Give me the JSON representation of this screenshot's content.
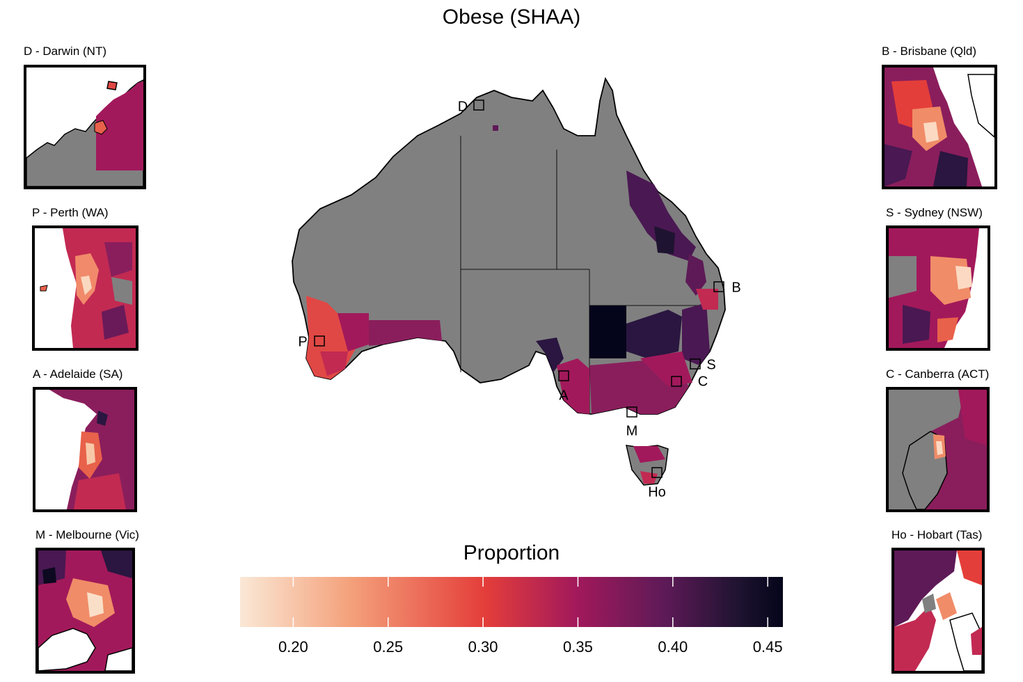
{
  "title": "Obese (SHAA)",
  "insets": [
    {
      "label": "D - Darwin (NT)"
    },
    {
      "label": "P - Perth (WA)"
    },
    {
      "label": "A - Adelaide (SA)"
    },
    {
      "label": "M - Melbourne (Vic)"
    },
    {
      "label": "B - Brisbane (Qld)"
    },
    {
      "label": "S - Sydney (NSW)"
    },
    {
      "label": "C - Canberra (ACT)"
    },
    {
      "label": "Ho - Hobart (Tas)"
    }
  ],
  "map_markers": [
    "D",
    "P",
    "A",
    "M",
    "B",
    "S",
    "C",
    "Ho"
  ],
  "legend": {
    "title": "Proportion",
    "ticks": [
      "0.20",
      "0.25",
      "0.30",
      "0.35",
      "0.40",
      "0.45"
    ],
    "range": [
      0.172,
      0.458
    ],
    "tick_values": [
      0.2,
      0.25,
      0.3,
      0.35,
      0.4,
      0.45
    ],
    "colors": [
      "#fae8d6",
      "#f4a27c",
      "#e43e3a",
      "#a2195b",
      "#5e1a57",
      "#1e1330",
      "#04051a"
    ]
  },
  "colors": {
    "no_data": "#808080",
    "border": "#000000"
  }
}
